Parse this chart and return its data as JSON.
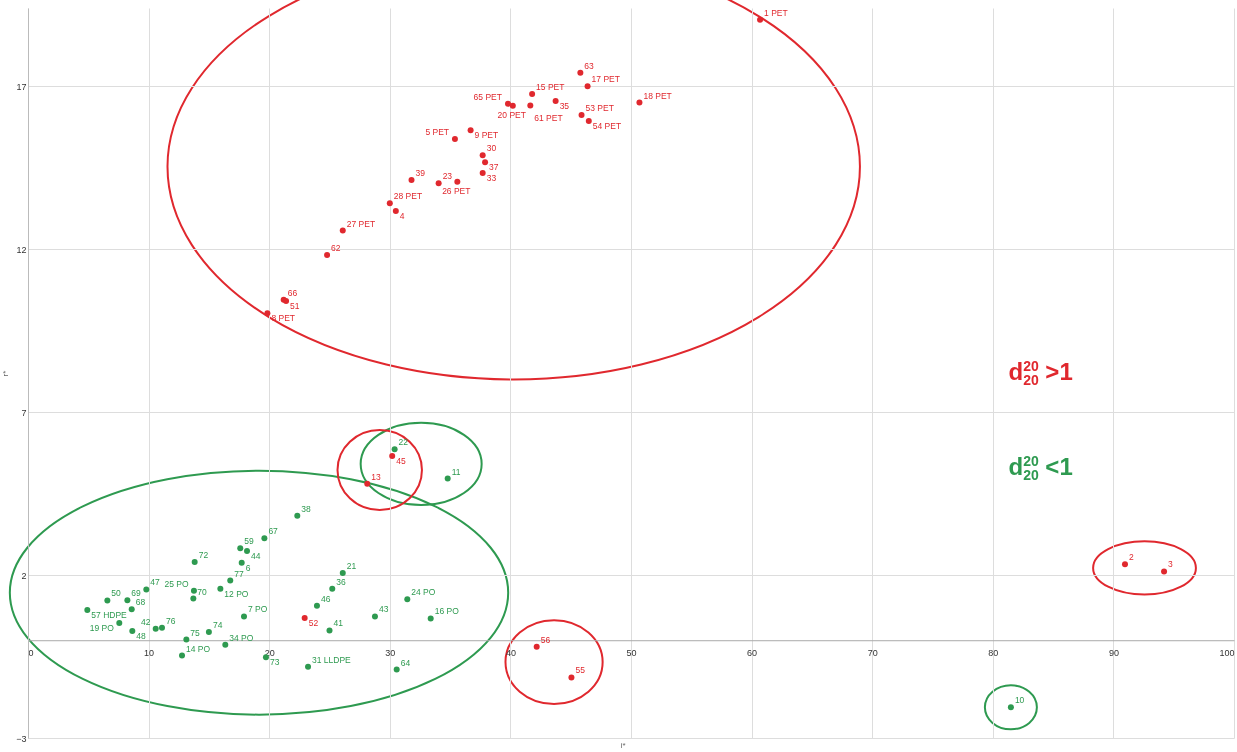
{
  "chart_data": {
    "type": "scatter",
    "xlabel": "i*",
    "ylabel": "r*",
    "xlim": [
      0,
      100
    ],
    "ylim": [
      -3,
      19.4
    ],
    "xticks": [
      0,
      10,
      20,
      30,
      40,
      50,
      60,
      70,
      80,
      90,
      100
    ],
    "yticks": [
      -3,
      2,
      7,
      12,
      17
    ],
    "grid": true,
    "marker": "circle",
    "series": [
      {
        "color": "#e0282e",
        "x": [
          60.7,
          45.8,
          46.4,
          41.8,
          43.75,
          39.8,
          40.2,
          41.65,
          45.9,
          46.5,
          50.7,
          36.7,
          35.4,
          37.7,
          37.9,
          37.7,
          31.8,
          34.05,
          35.6,
          30.0,
          30.5,
          26.1,
          24.8,
          21.2,
          21.4,
          19.85
        ],
        "values": [
          19.04,
          17.41,
          17.0,
          16.76,
          16.55,
          16.46,
          16.4,
          16.41,
          16.12,
          15.93,
          16.5,
          15.65,
          15.38,
          14.88,
          14.67,
          14.34,
          14.12,
          14.02,
          14.07,
          13.41,
          13.17,
          12.57,
          11.82,
          10.45,
          10.41,
          10.03
        ]
      },
      {
        "color": "#2e9a50",
        "x": [
          22.33,
          19.6,
          17.6,
          18.16,
          13.82,
          17.72,
          26.1,
          16.77,
          9.81,
          13.76,
          15.95,
          25.23,
          6.58,
          8.24,
          13.71,
          31.45,
          8.6,
          23.96,
          4.92,
          17.91,
          22.94,
          28.77,
          33.39,
          7.57,
          11.11,
          10.59,
          8.65,
          15.0,
          25.0,
          13.13,
          16.36,
          12.77,
          19.73,
          23.22,
          30.57
        ],
        "values": [
          3.82,
          3.13,
          2.82,
          2.74,
          2.4,
          2.38,
          2.06,
          1.83,
          1.56,
          1.52,
          1.58,
          1.58,
          1.22,
          1.23,
          1.28,
          1.26,
          0.95,
          1.06,
          0.93,
          0.73,
          0.68,
          0.73,
          0.67,
          0.53,
          0.38,
          0.35,
          0.28,
          0.25,
          0.3,
          0.02,
          -0.14,
          -0.47,
          -0.52,
          -0.81,
          -0.9
        ],
        "colors": [
          "#2e9a50",
          "#2e9a50",
          "#2e9a50",
          "#2e9a50",
          "#2e9a50",
          "#2e9a50",
          "#2e9a50",
          "#2e9a50",
          "#2e9a50",
          "#2e9a50",
          "#2e9a50",
          "#2e9a50",
          "#2e9a50",
          "#2e9a50",
          "#2e9a50",
          "#2e9a50",
          "#2e9a50",
          "#2e9a50",
          "#2e9a50",
          "#2e9a50",
          "#e0282e",
          "#2e9a50",
          "#2e9a50",
          "#2e9a50",
          "#2e9a50",
          "#2e9a50",
          "#2e9a50",
          "#2e9a50",
          "#2e9a50",
          "#2e9a50",
          "#2e9a50",
          "#2e9a50",
          "#2e9a50",
          "#2e9a50",
          "#2e9a50"
        ]
      },
      {
        "color": "#2e9a50",
        "x": [
          30.4,
          34.8
        ],
        "values": [
          5.86,
          4.96
        ]
      },
      {
        "color": "#e0282e",
        "x": [
          30.2,
          28.13
        ],
        "values": [
          5.65,
          4.8
        ]
      },
      {
        "color": "#e0282e",
        "x": [
          42.18,
          45.06
        ],
        "values": [
          -0.2,
          -1.14
        ]
      },
      {
        "color": "#e0282e",
        "x": [
          90.96,
          94.2
        ],
        "values": [
          2.33,
          2.11
        ]
      },
      {
        "color": "#2e9a50",
        "x": [
          81.5
        ],
        "values": [
          -2.06
        ]
      }
    ],
    "annotations": [
      "d$^{20}$$_{20}$ >1",
      "d$^{20}$$_{20}$ <1",
      {
        "text": "1 PET",
        "x": 60.7,
        "y": 19.04
      },
      {
        "text": "63",
        "x": 45.8,
        "y": 17.41
      },
      {
        "text": "17 PET",
        "x": 46.4,
        "y": 17.0
      },
      {
        "text": "15 PET",
        "x": 41.8,
        "y": 16.76
      },
      {
        "text": "35",
        "x": 43.75,
        "y": 16.55
      },
      {
        "text": "65 PET",
        "x": 39.8,
        "y": 16.46
      },
      {
        "text": "20 PET",
        "x": 40.2,
        "y": 16.4
      },
      {
        "text": "61 PET",
        "x": 41.65,
        "y": 16.41
      },
      {
        "text": "53 PET",
        "x": 45.9,
        "y": 16.12
      },
      {
        "text": "54 PET",
        "x": 46.5,
        "y": 15.93
      },
      {
        "text": "18 PET",
        "x": 50.7,
        "y": 16.5
      },
      {
        "text": "9 PET",
        "x": 36.7,
        "y": 15.65
      },
      {
        "text": "5 PET",
        "x": 35.4,
        "y": 15.38
      },
      {
        "text": "30",
        "x": 37.7,
        "y": 14.88
      },
      {
        "text": "37",
        "x": 37.9,
        "y": 14.67
      },
      {
        "text": "33",
        "x": 37.7,
        "y": 14.34
      },
      {
        "text": "39",
        "x": 31.8,
        "y": 14.12
      },
      {
        "text": "23",
        "x": 34.05,
        "y": 14.02
      },
      {
        "text": "26 PET",
        "x": 35.6,
        "y": 14.07
      },
      {
        "text": "28 PET",
        "x": 30.0,
        "y": 13.41
      },
      {
        "text": "4",
        "x": 30.5,
        "y": 13.17
      },
      {
        "text": "27 PET",
        "x": 26.1,
        "y": 12.57
      },
      {
        "text": "62",
        "x": 24.8,
        "y": 11.82
      },
      {
        "text": "66",
        "x": 21.2,
        "y": 10.45
      },
      {
        "text": "51",
        "x": 21.4,
        "y": 10.41
      },
      {
        "text": "8 PET",
        "x": 19.85,
        "y": 10.03
      },
      {
        "text": "38",
        "x": 22.33,
        "y": 3.82
      },
      {
        "text": "67",
        "x": 19.6,
        "y": 3.13
      },
      {
        "text": "59",
        "x": 17.6,
        "y": 2.82
      },
      {
        "text": "44",
        "x": 18.16,
        "y": 2.74
      },
      {
        "text": "72",
        "x": 13.82,
        "y": 2.4
      },
      {
        "text": "6",
        "x": 17.72,
        "y": 2.38
      },
      {
        "text": "21",
        "x": 26.1,
        "y": 2.06
      },
      {
        "text": "77",
        "x": 16.77,
        "y": 1.83
      },
      {
        "text": "47",
        "x": 9.81,
        "y": 1.56
      },
      {
        "text": "25 PO",
        "x": 13.76,
        "y": 1.52
      },
      {
        "text": "12 PO",
        "x": 15.95,
        "y": 1.58
      },
      {
        "text": "36",
        "x": 25.23,
        "y": 1.58
      },
      {
        "text": "50",
        "x": 6.58,
        "y": 1.22
      },
      {
        "text": "69",
        "x": 8.24,
        "y": 1.23
      },
      {
        "text": "70",
        "x": 13.71,
        "y": 1.28
      },
      {
        "text": "24 PO",
        "x": 31.45,
        "y": 1.26
      },
      {
        "text": "68",
        "x": 8.6,
        "y": 0.95
      },
      {
        "text": "46",
        "x": 23.96,
        "y": 1.06
      },
      {
        "text": "57 HDPE",
        "x": 4.92,
        "y": 0.93
      },
      {
        "text": "7 PO",
        "x": 17.91,
        "y": 0.73
      },
      {
        "text": "52",
        "x": 22.94,
        "y": 0.68
      },
      {
        "text": "43",
        "x": 28.77,
        "y": 0.73
      },
      {
        "text": "16 PO",
        "x": 33.39,
        "y": 0.67
      },
      {
        "text": "19 PO",
        "x": 7.57,
        "y": 0.53
      },
      {
        "text": "76",
        "x": 11.11,
        "y": 0.38
      },
      {
        "text": "42",
        "x": 10.59,
        "y": 0.35
      },
      {
        "text": "48",
        "x": 8.65,
        "y": 0.28
      },
      {
        "text": "74",
        "x": 15.0,
        "y": 0.25
      },
      {
        "text": "41",
        "x": 25.0,
        "y": 0.3
      },
      {
        "text": "75",
        "x": 13.13,
        "y": 0.02
      },
      {
        "text": "34 PO",
        "x": 16.36,
        "y": -0.14
      },
      {
        "text": "14 PO",
        "x": 12.77,
        "y": -0.47
      },
      {
        "text": "73",
        "x": 19.73,
        "y": -0.52
      },
      {
        "text": "31 LLDPE",
        "x": 23.22,
        "y": -0.81
      },
      {
        "text": "64",
        "x": 30.57,
        "y": -0.9
      },
      {
        "text": "22",
        "x": 30.4,
        "y": 5.86
      },
      {
        "text": "11",
        "x": 34.8,
        "y": 4.96
      },
      {
        "text": "45",
        "x": 30.2,
        "y": 5.65
      },
      {
        "text": "13",
        "x": 28.13,
        "y": 4.8
      },
      {
        "text": "56",
        "x": 42.18,
        "y": -0.2
      },
      {
        "text": "55",
        "x": 45.06,
        "y": -1.14
      },
      {
        "text": "2",
        "x": 90.96,
        "y": 2.33
      },
      {
        "text": "3",
        "x": 94.2,
        "y": 2.11
      },
      {
        "text": "10",
        "x": 81.5,
        "y": -2.06
      }
    ]
  }
}
